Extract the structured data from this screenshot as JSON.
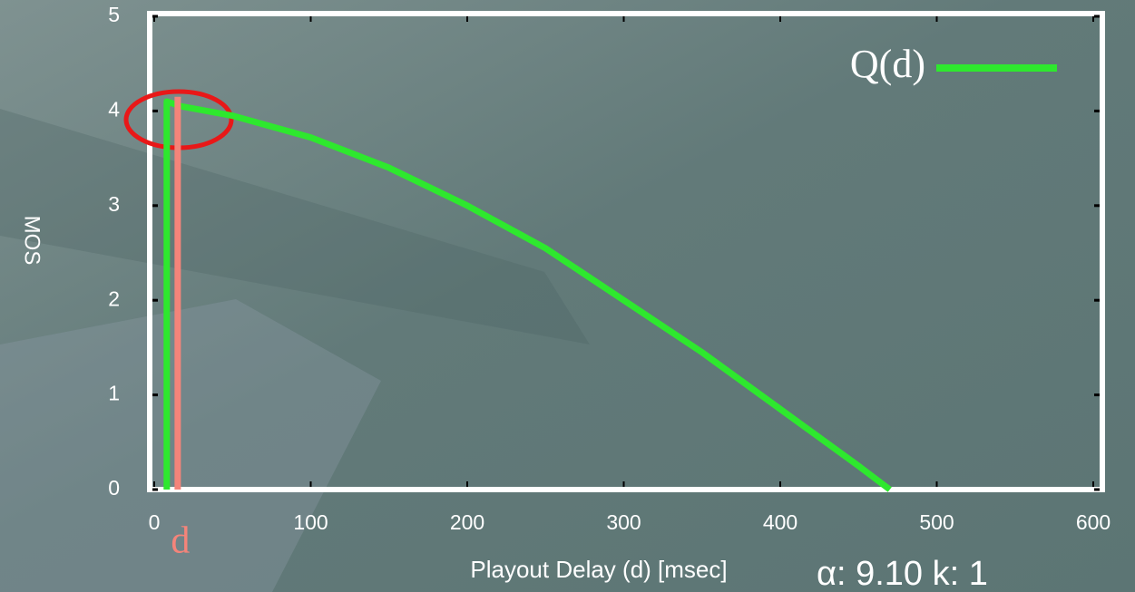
{
  "chart_data": {
    "type": "line",
    "x_label": "Playout Delay (d)  [msec]",
    "y_label": "MOS",
    "xlim": [
      0,
      600
    ],
    "xticks": [
      0,
      100,
      200,
      300,
      400,
      500,
      600
    ],
    "ylim": [
      0,
      5
    ],
    "yticks": [
      0,
      1,
      2,
      3,
      4,
      5
    ],
    "legend": "top-right",
    "series": [
      {
        "name": "Q(d)",
        "color": "#2ee82e",
        "x": [
          8,
          8,
          17,
          50,
          100,
          150,
          200,
          250,
          300,
          350,
          400,
          450,
          470
        ],
        "values": [
          0,
          4.1,
          4.05,
          3.95,
          3.72,
          3.4,
          3.0,
          2.55,
          2.0,
          1.45,
          0.85,
          0.25,
          0
        ]
      }
    ],
    "marker": {
      "label": "d",
      "x": 15,
      "y_top": 4.15,
      "color": "#f4847a"
    },
    "footnote": "α: 9.10    k: 1"
  }
}
